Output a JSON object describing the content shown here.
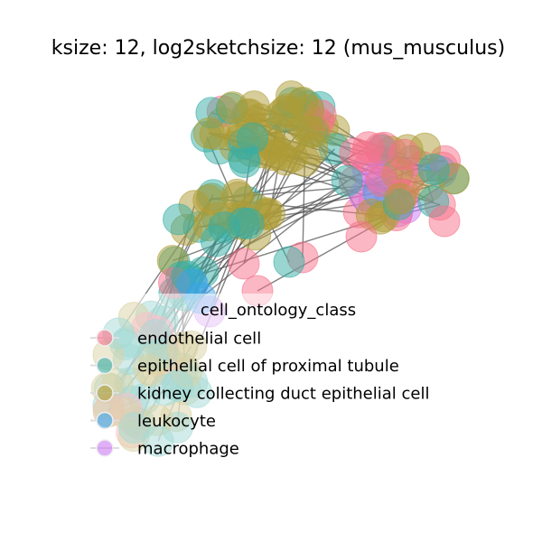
{
  "title": "ksize: 12, log2sketchsize: 12 (mus_musculus)",
  "legend": {
    "title": "cell_ontology_class",
    "entries": [
      {
        "label": "endothelial cell",
        "color": "#f77189"
      },
      {
        "label": "epithelial cell of proximal tubule",
        "color": "#36ada4"
      },
      {
        "label": "kidney collecting duct epithelial cell",
        "color": "#ad9c36"
      },
      {
        "label": "leukocyte",
        "color": "#3ba3ec"
      },
      {
        "label": "macrophage",
        "color": "#cc79f4"
      }
    ]
  },
  "style": {
    "edge_color": "#555555",
    "node_opacity": 0.5
  }
}
